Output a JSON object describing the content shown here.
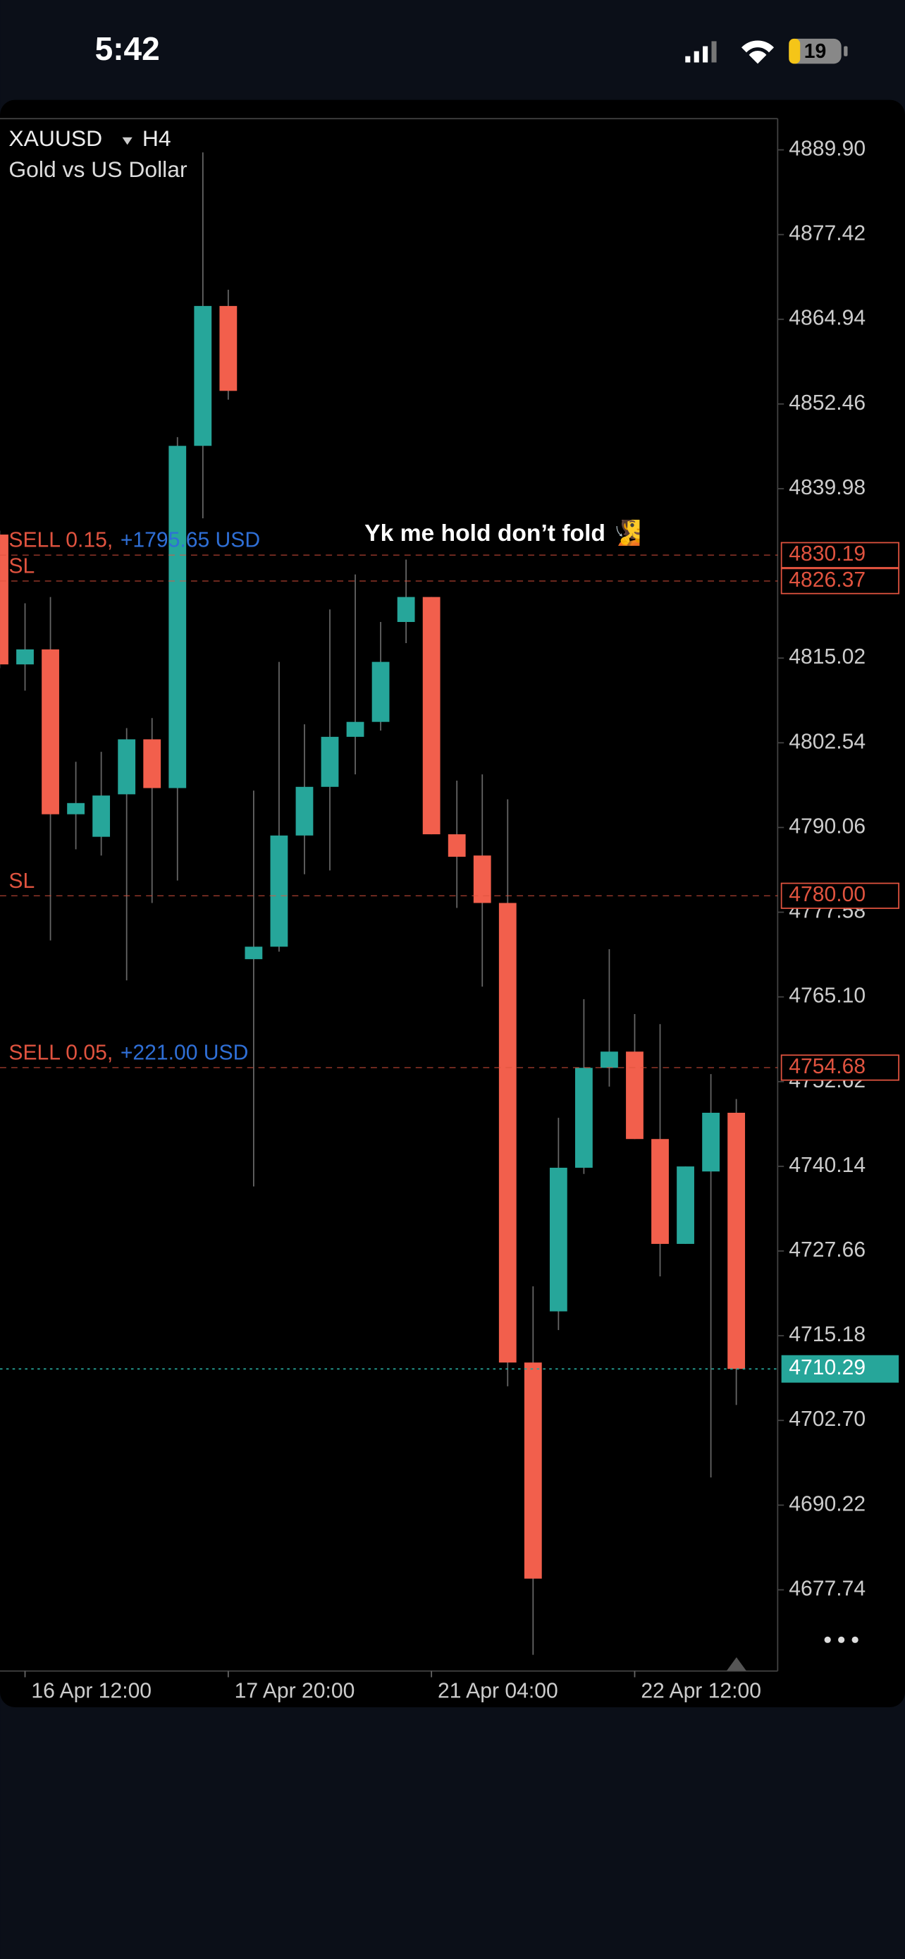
{
  "status_bar": {
    "time": "5:42",
    "battery": "19"
  },
  "chart_data": {
    "type": "candlestick",
    "title": "XAUUSD",
    "timeframe": "H4",
    "subtitle": "Gold vs US Dollar",
    "annotation": "Yk me hold don’t fold 🧏",
    "up_color": "#26a69a",
    "down_color": "#f25f4c",
    "categories": [
      null,
      "16 Apr 12:00",
      null,
      null,
      null,
      null,
      null,
      null,
      null,
      "17 Apr 20:00",
      null,
      null,
      null,
      null,
      null,
      null,
      null,
      "21 Apr 04:00",
      null,
      null,
      null,
      null,
      null,
      null,
      null,
      "22 Apr 12:00",
      null,
      null,
      null,
      null
    ],
    "open": [
      4833.22,
      4814.09,
      4816.3,
      4792.01,
      4788.69,
      4794.95,
      4803.05,
      4795.87,
      4846.29,
      4866.9,
      4770.66,
      4772.5,
      4788.88,
      4796.05,
      4803.42,
      4805.62,
      4820.34,
      4824.02,
      4789.06,
      4785.93,
      4778.94,
      4711.23,
      4718.77,
      4739.93,
      4754.65,
      4757.04,
      4744.16,
      4728.71,
      4739.38,
      4748.03
    ],
    "high": [
      4833.78,
      4823.1,
      4824.02,
      4799.74,
      4801.21,
      4804.7,
      4806.18,
      4847.58,
      4889.53,
      4869.29,
      4795.5,
      4814.46,
      4805.26,
      4822.18,
      4827.34,
      4820.34,
      4829.54,
      4824.02,
      4796.97,
      4797.89,
      4794.21,
      4722.45,
      4747.29,
      4764.77,
      4772.13,
      4762.57,
      4761.09,
      4740.12,
      4753.73,
      4750.05
    ],
    "low": [
      4813.54,
      4810.22,
      4773.42,
      4786.85,
      4785.93,
      4767.53,
      4778.94,
      4782.25,
      4835.62,
      4853.1,
      4737.17,
      4771.77,
      4783.17,
      4783.73,
      4797.89,
      4804.34,
      4817.22,
      4789.06,
      4778.21,
      4766.61,
      4707.73,
      4668.17,
      4716.01,
      4739.01,
      4751.89,
      4744.16,
      4723.92,
      4728.71,
      4694.3,
      4704.97
    ],
    "close": [
      4814.09,
      4816.3,
      4792.01,
      4793.66,
      4794.77,
      4803.05,
      4795.87,
      4846.29,
      4866.9,
      4854.39,
      4772.5,
      4788.88,
      4796.05,
      4803.42,
      4805.62,
      4814.46,
      4824.02,
      4789.06,
      4785.75,
      4778.94,
      4711.23,
      4679.39,
      4739.93,
      4754.65,
      4757.04,
      4744.16,
      4728.71,
      4740.12,
      4748.03,
      4710.29
    ],
    "ylim": [
      4665.78,
      4894.5
    ],
    "yticks": [
      {
        "value": 4889.9,
        "label": "4889.90"
      },
      4877.42,
      4864.94,
      4852.46,
      4839.98,
      4815.02,
      4802.54,
      4790.06,
      4777.58,
      {
        "value": 4765.1,
        "label": "4765.10"
      },
      4752.62,
      4740.14,
      4727.66,
      4715.18,
      {
        "value": 4702.7,
        "label": "4702.70"
      },
      4690.22,
      4677.74
    ],
    "levels": [
      {
        "value": 4830.19,
        "label": "4830.19",
        "order": "SELL 0.15,",
        "profit": "+1795.65 USD",
        "color": "#e0533f"
      },
      {
        "value": 4826.37,
        "label": "4826.37",
        "order": "SL",
        "color": "#e0533f"
      },
      {
        "value": 4780,
        "label": "4780.00",
        "order": "SL",
        "color": "#e0533f"
      },
      {
        "value": 4754.68,
        "label": "4754.68",
        "order": "SELL 0.05,",
        "profit": "+221.00 USD",
        "color": "#e0533f"
      }
    ],
    "profit_color": "#2f6fd6",
    "last_price": {
      "value": 4710.29,
      "label": "4710.29",
      "color": "#26a69a"
    }
  }
}
